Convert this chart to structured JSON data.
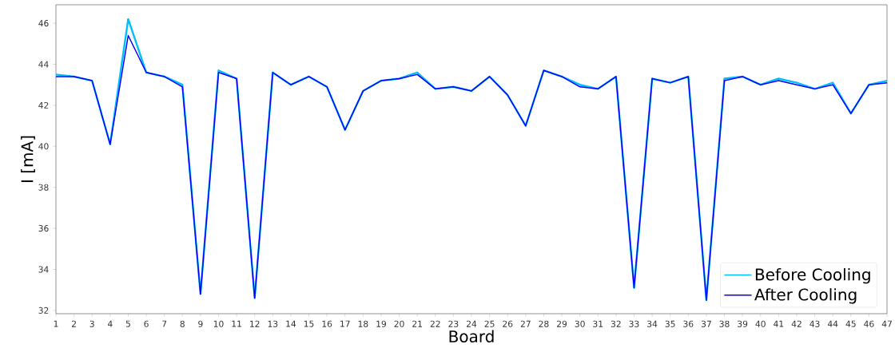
{
  "chart_data": {
    "type": "line",
    "xlabel": "Board",
    "ylabel": "I [mA]",
    "x": [
      1,
      2,
      3,
      4,
      5,
      6,
      7,
      8,
      9,
      10,
      11,
      12,
      13,
      14,
      15,
      16,
      17,
      18,
      19,
      20,
      21,
      22,
      23,
      24,
      25,
      26,
      27,
      28,
      29,
      30,
      31,
      32,
      33,
      34,
      35,
      36,
      37,
      38,
      39,
      40,
      41,
      42,
      43,
      44,
      45,
      46,
      47
    ],
    "series": [
      {
        "name": "Before Cooling",
        "color": "#00bfff",
        "values": [
          43.5,
          43.4,
          43.2,
          40.1,
          46.2,
          43.6,
          43.4,
          43.0,
          32.8,
          43.7,
          43.3,
          32.6,
          43.6,
          43.0,
          43.4,
          42.9,
          40.8,
          42.7,
          43.2,
          43.3,
          43.6,
          42.8,
          42.9,
          42.7,
          43.4,
          42.5,
          41.0,
          43.7,
          43.4,
          43.0,
          42.8,
          43.4,
          33.1,
          43.3,
          43.1,
          43.4,
          32.5,
          43.3,
          43.4,
          43.0,
          43.3,
          43.1,
          42.8,
          43.1,
          41.6,
          43.0,
          43.2
        ]
      },
      {
        "name": "After Cooling",
        "color": "#0000ff",
        "values": [
          43.4,
          43.4,
          43.2,
          40.1,
          45.4,
          43.6,
          43.4,
          42.9,
          32.8,
          43.6,
          43.3,
          32.6,
          43.6,
          43.0,
          43.4,
          42.9,
          40.8,
          42.7,
          43.2,
          43.3,
          43.5,
          42.8,
          42.9,
          42.7,
          43.4,
          42.5,
          41.0,
          43.7,
          43.4,
          42.9,
          42.8,
          43.4,
          33.1,
          43.3,
          43.1,
          43.4,
          32.5,
          43.2,
          43.4,
          43.0,
          43.2,
          43.0,
          42.8,
          43.0,
          41.6,
          43.0,
          43.1
        ]
      }
    ],
    "xlim": [
      1,
      47
    ],
    "ylim": [
      31.84,
      46.9
    ],
    "xticks": [
      1,
      2,
      3,
      4,
      5,
      6,
      7,
      8,
      9,
      10,
      11,
      12,
      13,
      14,
      15,
      16,
      17,
      18,
      19,
      20,
      21,
      22,
      23,
      24,
      25,
      26,
      27,
      28,
      29,
      30,
      31,
      32,
      33,
      34,
      35,
      36,
      37,
      38,
      39,
      40,
      41,
      42,
      43,
      44,
      45,
      46,
      47
    ],
    "yticks": [
      32,
      34,
      36,
      38,
      40,
      42,
      44,
      46
    ],
    "grid": false,
    "legend": "bottom right",
    "marker": "none",
    "line_style": "solid"
  }
}
